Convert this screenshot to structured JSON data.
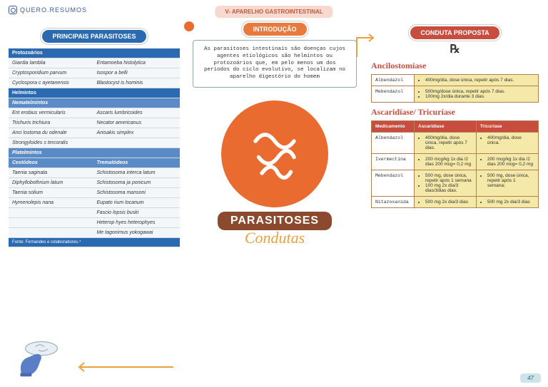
{
  "brand": "QUERO.RESUMOS",
  "chapter": "V- APARELHO GASTROINTESTINAL",
  "left": {
    "title": "PRINCIPAIS PARASITOSES",
    "table": {
      "sections": [
        {
          "header": "Protozoários",
          "rows": [
            [
              "Giardia lamblia",
              "Entamoeba histolytica"
            ],
            [
              "Cryptosporidium parvum",
              "Isospor a belli"
            ],
            [
              "Cyclospora c ayetanensis",
              "Blastocyst is hominis"
            ]
          ]
        },
        {
          "header": "Helmintos",
          "rows": []
        },
        {
          "subheader": "Nematelmintos",
          "rows": [
            [
              "Ent erobius vermicularis",
              "Ascaris lumbricoides"
            ],
            [
              "Trichuris trichiura",
              "Necator americanus"
            ],
            [
              "Anci lostoma du odenale",
              "Anisakis simplex"
            ],
            [
              "Strongyloides s tercoralis",
              ""
            ]
          ]
        },
        {
          "subheader": "Platelmintos",
          "rows": []
        },
        {
          "cols": [
            "Cestódeos",
            "Trematódeos"
          ],
          "rows": [
            [
              "Taenia saginata",
              "Schistosoma interca latum"
            ],
            [
              "Diphyllobothrium latum",
              "Schistosoma ja ponicum"
            ],
            [
              "Taenia solium",
              "Schistosoma mansoni"
            ],
            [
              "Hymenolepis nana",
              "Eupato rium locanum"
            ],
            [
              "",
              "Fascio lopsis buski"
            ],
            [
              "",
              "Heterop hyes heterophyes"
            ],
            [
              "",
              "Me tagonimus yokogawai"
            ]
          ]
        }
      ],
      "source": "Fonte: Fernandes e colaboradores.⁴"
    }
  },
  "mid": {
    "intro_label": "INTRODUÇÃO",
    "intro_text": "As parasitoses intestinais são doenças cujos agentes etiológicos são helmintos ou protozoários que, em pelo menos um dos períodos do ciclo evolutivo, se localizam no aparelho digestório do homem",
    "main_title": "PARASITOSES",
    "subtitle": "Condutas"
  },
  "right": {
    "title": "CONDUTA PROPOSTA",
    "rx": "℞",
    "blocks": [
      {
        "name": "Ancilostomíase",
        "rows": [
          {
            "drug": "Albendazol",
            "dose": [
              "400mg/dia, dose única, repetir após 7 dias."
            ]
          },
          {
            "drug": "Mebendazol",
            "dose": [
              "500mg/dose única, repetir após 7 dias.",
              "100mg 2x/dia durante 3 dias."
            ]
          }
        ]
      },
      {
        "name": "Ascaridíase/ Tricuríase",
        "headers": [
          "Medicamento",
          "Ascaridíase",
          "Tricuríase"
        ],
        "rows": [
          {
            "drug": "Albendazol",
            "c1": [
              "400mg/dia, dose única, repetir após 7 dias."
            ],
            "c2": [
              "400mg/dia, dose única."
            ]
          },
          {
            "drug": "Ivermectina",
            "c1": [
              "200 mcg/kg 1x dia /2 dias 200 mcg= 0,2 mg"
            ],
            "c2": [
              "200 mcg/kg 1x dia /2 dias 200 mcg= 0,2 mg"
            ]
          },
          {
            "drug": "Mebendazol",
            "c1": [
              "500 mg, dose única, repetir após 1 semana",
              "100 mg 2x dia/3 dias/3dias dias."
            ],
            "c2": [
              "500 mg, dose única, repetir após 1 semana;"
            ]
          },
          {
            "drug": "Nitazoxanida",
            "c1": [
              "500 mg 2x dia/3 dias"
            ],
            "c2": [
              "500 mg 2x dia/3 dias"
            ]
          }
        ]
      }
    ]
  },
  "page_number": "47",
  "colors": {
    "blue": "#2b6ab0",
    "orange": "#e96b2f",
    "red": "#c94d3e",
    "accent": "#e9a23b"
  }
}
